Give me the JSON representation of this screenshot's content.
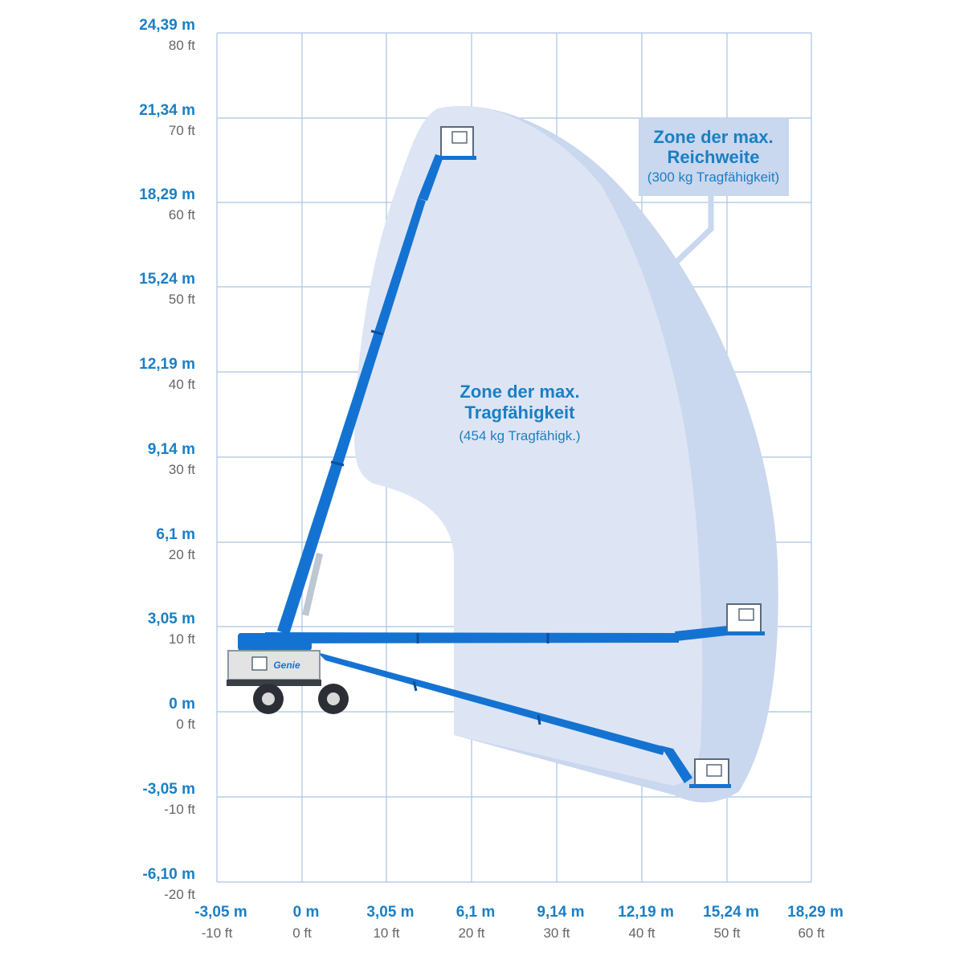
{
  "colors": {
    "grid": "#a9c3e3",
    "zone_reach": "#c9d7ef",
    "zone_capacity": "#dde5f5",
    "boom": "#1473d2",
    "boom_dark": "#0b4f9c",
    "label_blue": "#1a7fc4",
    "label_gray": "#666666",
    "machine_body": "#e3e3e3"
  },
  "y_axis": [
    {
      "m": "24,39 m",
      "ft": "80 ft"
    },
    {
      "m": "21,34 m",
      "ft": "70 ft"
    },
    {
      "m": "18,29 m",
      "ft": "60 ft"
    },
    {
      "m": "15,24 m",
      "ft": "50 ft"
    },
    {
      "m": "12,19 m",
      "ft": "40 ft"
    },
    {
      "m": "9,14 m",
      "ft": "30 ft"
    },
    {
      "m": "6,1 m",
      "ft": "20 ft"
    },
    {
      "m": "3,05 m",
      "ft": "10 ft"
    },
    {
      "m": "0 m",
      "ft": "0 ft"
    },
    {
      "m": "-3,05 m",
      "ft": "-10 ft"
    },
    {
      "m": "-6,10 m",
      "ft": "-20 ft"
    }
  ],
  "x_axis": [
    {
      "m": "-3,05 m",
      "ft": "-10 ft"
    },
    {
      "m": "0 m",
      "ft": "0 ft"
    },
    {
      "m": "3,05 m",
      "ft": "10 ft"
    },
    {
      "m": "6,1 m",
      "ft": "20 ft"
    },
    {
      "m": "9,14 m",
      "ft": "30 ft"
    },
    {
      "m": "12,19 m",
      "ft": "40 ft"
    },
    {
      "m": "15,24 m",
      "ft": "50 ft"
    },
    {
      "m": "18,29 m",
      "ft": "60 ft"
    }
  ],
  "zones": {
    "capacity": {
      "title_line1": "Zone der max.",
      "title_line2": "Tragfähigkeit",
      "subtitle": "(454 kg Tragfähigk.)"
    },
    "reach": {
      "title_line1": "Zone der max.",
      "title_line2": "Reichweite",
      "subtitle": "(300 kg Tragfähigkeit)"
    }
  },
  "machine": {
    "brand": "Genie"
  }
}
